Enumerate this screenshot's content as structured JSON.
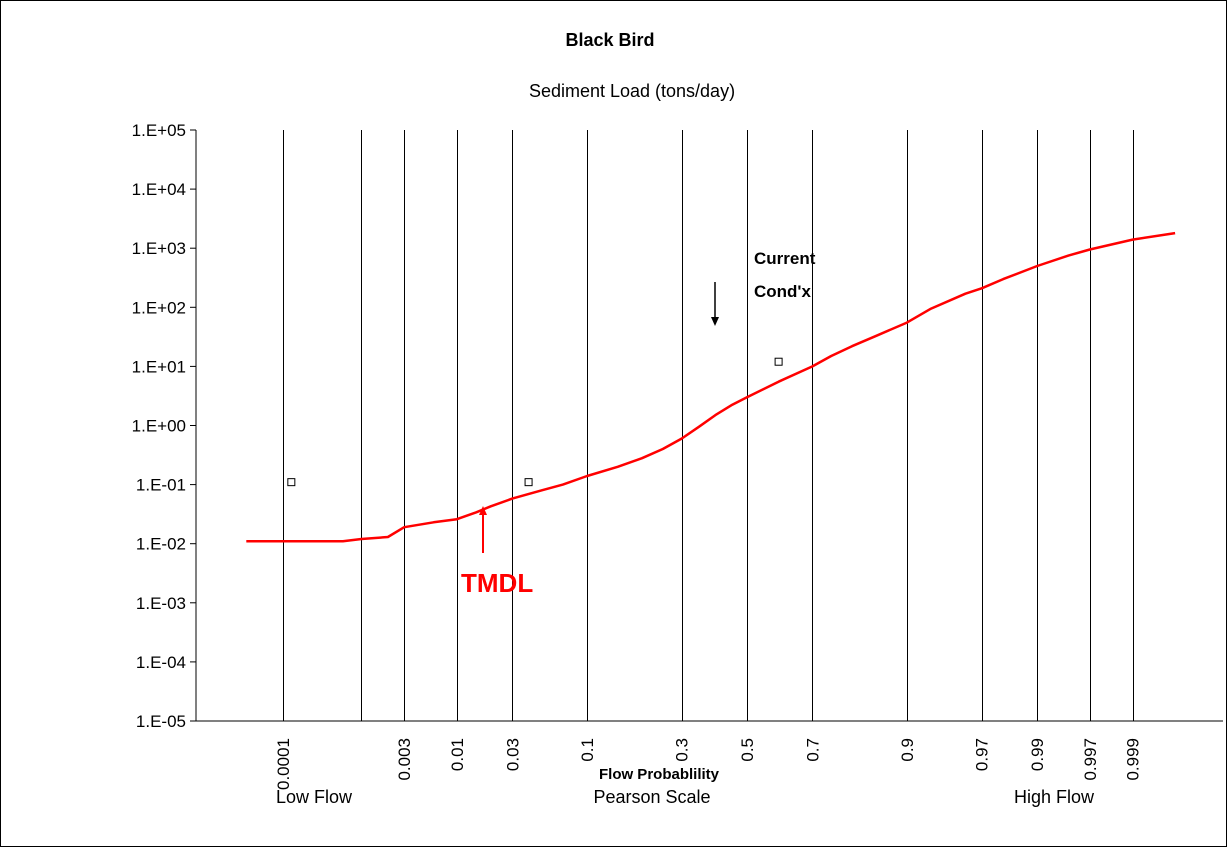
{
  "chart_data": {
    "type": "line",
    "title": "Black Bird",
    "subtitle": "Sediment Load (tons/day)",
    "xlabel": "Flow Probablility",
    "xscale_label": "Pearson Scale",
    "x_footer_left": "Low Flow",
    "x_footer_right": "High Flow",
    "yscale": "log",
    "ylim": [
      1e-05,
      100000
    ],
    "y_tick_labels": [
      "1.E+05",
      "1.E+04",
      "1.E+03",
      "1.E+02",
      "1.E+01",
      "1.E+00",
      "1.E-01",
      "1.E-02",
      "1.E-03",
      "1.E-04",
      "1.E-05"
    ],
    "x_ticks": [
      {
        "label": "0.0001",
        "p": 0.0001
      },
      {
        "label": "0.003",
        "p": 0.003
      },
      {
        "label": "0.01",
        "p": 0.01
      },
      {
        "label": "0.03",
        "p": 0.03
      },
      {
        "label": "0.1",
        "p": 0.1
      },
      {
        "label": "0.3",
        "p": 0.3
      },
      {
        "label": "0.5",
        "p": 0.5
      },
      {
        "label": "0.7",
        "p": 0.7
      },
      {
        "label": "0.9",
        "p": 0.9
      },
      {
        "label": "0.97",
        "p": 0.97
      },
      {
        "label": "0.99",
        "p": 0.99
      },
      {
        "label": "0.997",
        "p": 0.997
      },
      {
        "label": "0.999",
        "p": 0.999
      }
    ],
    "x_gridlines": [
      0.0001,
      0.001,
      0.003,
      0.01,
      0.03,
      0.1,
      0.3,
      0.5,
      0.7,
      0.9,
      0.97,
      0.99,
      0.997,
      0.999
    ],
    "series": [
      {
        "color": "#ff0000",
        "style": "line",
        "points": [
          [
            3e-05,
            0.011
          ],
          [
            0.0001,
            0.011
          ],
          [
            0.0003,
            0.011
          ],
          [
            0.0006,
            0.011
          ],
          [
            0.001,
            0.012
          ],
          [
            0.002,
            0.013
          ],
          [
            0.003,
            0.019
          ],
          [
            0.006,
            0.023
          ],
          [
            0.01,
            0.026
          ],
          [
            0.015,
            0.034
          ],
          [
            0.02,
            0.043
          ],
          [
            0.03,
            0.058
          ],
          [
            0.05,
            0.08
          ],
          [
            0.07,
            0.1
          ],
          [
            0.1,
            0.14
          ],
          [
            0.15,
            0.2
          ],
          [
            0.2,
            0.28
          ],
          [
            0.25,
            0.4
          ],
          [
            0.3,
            0.6
          ],
          [
            0.35,
            0.95
          ],
          [
            0.4,
            1.5
          ],
          [
            0.45,
            2.2
          ],
          [
            0.5,
            3.0
          ],
          [
            0.6,
            5.5
          ],
          [
            0.7,
            10
          ],
          [
            0.75,
            15
          ],
          [
            0.8,
            22
          ],
          [
            0.85,
            33
          ],
          [
            0.9,
            55
          ],
          [
            0.93,
            95
          ],
          [
            0.96,
            170
          ],
          [
            0.97,
            210
          ],
          [
            0.98,
            300
          ],
          [
            0.99,
            500
          ],
          [
            0.995,
            750
          ],
          [
            0.997,
            950
          ],
          [
            0.999,
            1400
          ],
          [
            0.9997,
            1800
          ]
        ]
      },
      {
        "color": "#000000",
        "style": "square-markers",
        "points": [
          [
            0.00013,
            0.11
          ],
          [
            0.04,
            0.11
          ],
          [
            0.6,
            12
          ]
        ]
      }
    ],
    "annotations": [
      {
        "text": "Current",
        "color": "#000000"
      },
      {
        "text": "Cond'x",
        "color": "#000000"
      },
      {
        "text": "TMDL",
        "color": "#ff0000"
      }
    ]
  }
}
